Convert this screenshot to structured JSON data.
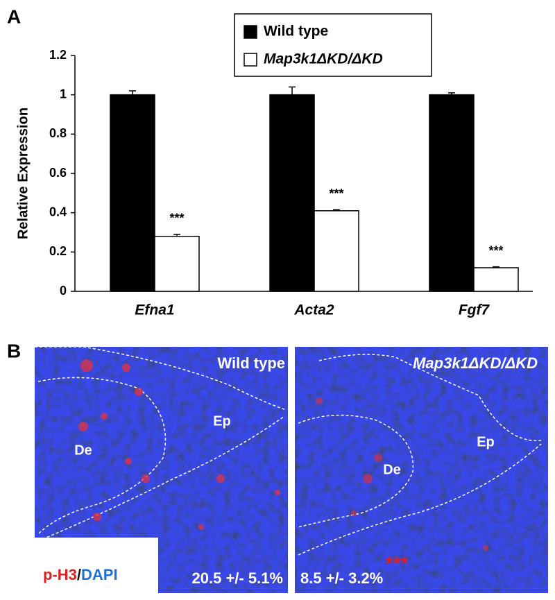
{
  "chart_data": {
    "type": "bar",
    "panel_label": "A",
    "y_label": "Relative Expression",
    "categories": [
      "Efna1",
      "Acta2",
      "Fgf7"
    ],
    "series": [
      {
        "name": "Wild type",
        "color": "#000000",
        "values": [
          1,
          1,
          1
        ],
        "errors": [
          0.02,
          0.04,
          0.01
        ]
      },
      {
        "name": "Map3k1ΔKD/ΔKD",
        "color": "#ffffff",
        "values": [
          0.28,
          0.41,
          0.12
        ],
        "errors": [
          0.01,
          0.005,
          0.005
        ],
        "annotations": [
          "***",
          "***",
          "***"
        ]
      }
    ],
    "ylim": [
      0,
      1.2
    ],
    "yticks": [
      0,
      0.2,
      0.4,
      0.6,
      0.8,
      1,
      1.2
    ],
    "grid": false
  },
  "panel_b": {
    "label": "B",
    "images": [
      {
        "title": "Wild type",
        "regions": [
          "De",
          "Ep"
        ],
        "quantification": "20.5 +/- 5.1%"
      },
      {
        "title": "Map3k1ΔKD/ΔKD",
        "regions": [
          "De",
          "Ep"
        ],
        "quantification": "8.5 +/- 3.2%",
        "significance": "***"
      }
    ],
    "stain_legend": [
      "p-H3",
      "/",
      "DAPI"
    ]
  }
}
